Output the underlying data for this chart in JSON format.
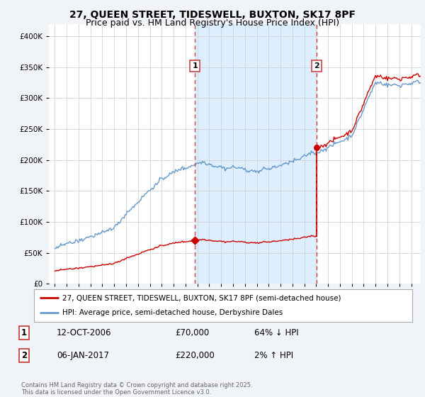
{
  "title_line1": "27, QUEEN STREET, TIDESWELL, BUXTON, SK17 8PF",
  "title_line2": "Price paid vs. HM Land Registry's House Price Index (HPI)",
  "legend_red": "27, QUEEN STREET, TIDESWELL, BUXTON, SK17 8PF (semi-detached house)",
  "legend_blue": "HPI: Average price, semi-detached house, Derbyshire Dales",
  "sale1_label": "1",
  "sale1_date": "12-OCT-2006",
  "sale1_price": "£70,000",
  "sale1_hpi": "64% ↓ HPI",
  "sale1_year": 2006.79,
  "sale1_value": 70000,
  "sale2_label": "2",
  "sale2_date": "06-JAN-2017",
  "sale2_price": "£220,000",
  "sale2_hpi": "2% ↑ HPI",
  "sale2_year": 2017.02,
  "sale2_value": 220000,
  "red_color": "#cc0000",
  "blue_color": "#6699cc",
  "shade_color": "#ddeeff",
  "dashed_color": "#cc4444",
  "background_color": "#f0f4f8",
  "plot_bg_color": "#ffffff",
  "grid_color": "#cccccc",
  "ylim_min": 0,
  "ylim_max": 420000,
  "xlim_min": 1994.5,
  "xlim_max": 2025.8,
  "title_fontsize": 10,
  "subtitle_fontsize": 9
}
